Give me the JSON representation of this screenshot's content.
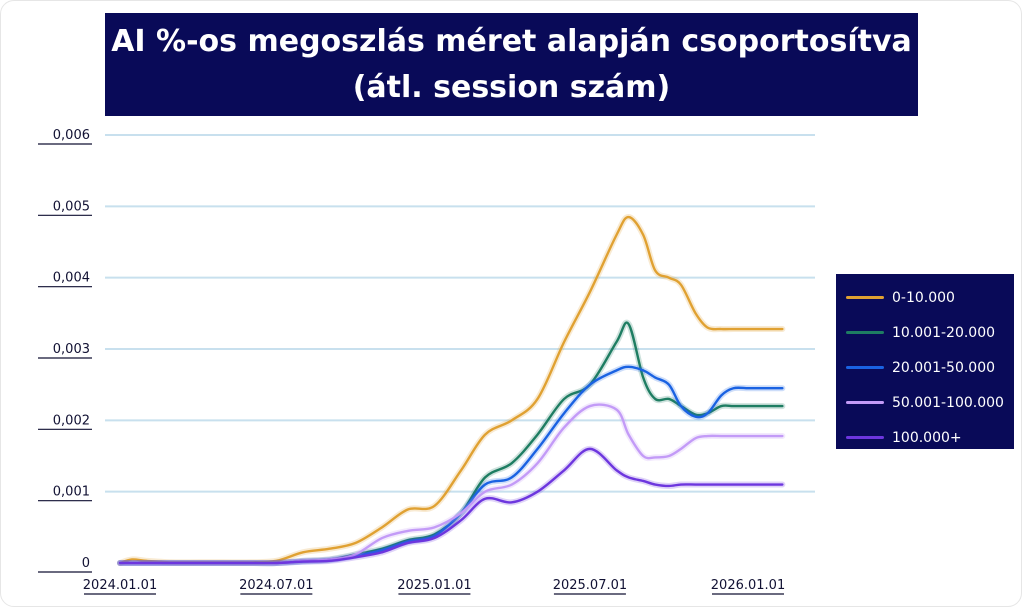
{
  "chart_data": {
    "type": "line",
    "title_line1": "AI %-os megoszlás méret alapján csoportosítva",
    "title_line2": "(átl. session szám)",
    "xlabel": "",
    "ylabel": "",
    "ylim": [
      0,
      0.006
    ],
    "yticks": [
      0,
      0.001,
      0.002,
      0.003,
      0.004,
      0.005,
      0.006
    ],
    "ytick_labels": [
      "0",
      "0,001",
      "0,002",
      "0,003",
      "0,004",
      "0,005",
      "0,006"
    ],
    "xticks": [
      "2024-01-01",
      "2024-07-01",
      "2025-01-01",
      "2025-07-01",
      "2026-01-01"
    ],
    "xtick_labels": [
      "2024.01.01",
      "2024.07.01",
      "2025.01.01",
      "2025.07.01",
      "2026.01.01"
    ],
    "xlim": [
      "2024-01-01",
      "2026-02-15"
    ],
    "grid": true,
    "legend_position": "right",
    "x": [
      "2024-01-01",
      "2024-01-15",
      "2024-02-01",
      "2024-03-01",
      "2024-04-01",
      "2024-05-01",
      "2024-06-01",
      "2024-07-01",
      "2024-08-01",
      "2024-09-01",
      "2024-10-01",
      "2024-11-01",
      "2024-12-01",
      "2025-01-01",
      "2025-02-01",
      "2025-03-01",
      "2025-04-01",
      "2025-05-01",
      "2025-06-01",
      "2025-07-01",
      "2025-08-01",
      "2025-08-15",
      "2025-09-01",
      "2025-09-15",
      "2025-10-01",
      "2025-10-15",
      "2025-11-01",
      "2025-11-15",
      "2025-12-01",
      "2025-12-15",
      "2026-01-01",
      "2026-01-15",
      "2026-02-01",
      "2026-02-10"
    ],
    "series": [
      {
        "name": "0-10.000",
        "color": "#e0a132",
        "values": [
          0,
          5e-05,
          3e-05,
          1e-05,
          1e-05,
          1e-05,
          1e-05,
          3e-05,
          0.00015,
          0.0002,
          0.00028,
          0.0005,
          0.00075,
          0.0008,
          0.0013,
          0.0018,
          0.002,
          0.0023,
          0.0031,
          0.0038,
          0.0046,
          0.00485,
          0.0046,
          0.0041,
          0.004,
          0.0039,
          0.0035,
          0.0033,
          0.00328,
          0.00328,
          0.00328,
          0.00328,
          0.00328,
          0.00328
        ]
      },
      {
        "name": "10.001-20.000",
        "color": "#1e7d62",
        "values": [
          0,
          0,
          0,
          0,
          0,
          0,
          0,
          0,
          3e-05,
          5e-05,
          0.00012,
          0.0002,
          0.00032,
          0.0004,
          0.0007,
          0.0012,
          0.0014,
          0.0018,
          0.0023,
          0.0025,
          0.0031,
          0.00335,
          0.0026,
          0.0023,
          0.0023,
          0.0022,
          0.00208,
          0.0021,
          0.0022,
          0.0022,
          0.0022,
          0.0022,
          0.0022,
          0.0022
        ]
      },
      {
        "name": "20.001-50.000",
        "color": "#1a62e2",
        "values": [
          0,
          0,
          0,
          0,
          0,
          0,
          0,
          0,
          2e-05,
          4e-05,
          0.0001,
          0.00018,
          0.0003,
          0.00038,
          0.0007,
          0.0011,
          0.0012,
          0.0016,
          0.0021,
          0.0025,
          0.0027,
          0.00275,
          0.0027,
          0.0026,
          0.0025,
          0.0022,
          0.00205,
          0.0021,
          0.00235,
          0.00245,
          0.00245,
          0.00245,
          0.00245,
          0.00245
        ]
      },
      {
        "name": "50.001-100.000",
        "color": "#c39bf7",
        "values": [
          0,
          0,
          0,
          0,
          0,
          0,
          0,
          0,
          3e-05,
          5e-05,
          0.00012,
          0.00035,
          0.00045,
          0.0005,
          0.0007,
          0.001,
          0.0011,
          0.0014,
          0.0019,
          0.0022,
          0.00215,
          0.0018,
          0.0015,
          0.00148,
          0.0015,
          0.0016,
          0.00175,
          0.00178,
          0.00178,
          0.00178,
          0.00178,
          0.00178,
          0.00178,
          0.00178
        ]
      },
      {
        "name": "100.000+",
        "color": "#6d36de",
        "values": [
          0,
          0,
          0,
          0,
          0,
          0,
          0,
          0,
          2e-05,
          3e-05,
          8e-05,
          0.00015,
          0.00028,
          0.00035,
          0.0006,
          0.0009,
          0.00085,
          0.001,
          0.0013,
          0.0016,
          0.0013,
          0.0012,
          0.00115,
          0.0011,
          0.00108,
          0.0011,
          0.0011,
          0.0011,
          0.0011,
          0.0011,
          0.0011,
          0.0011,
          0.0011,
          0.0011
        ]
      }
    ]
  }
}
